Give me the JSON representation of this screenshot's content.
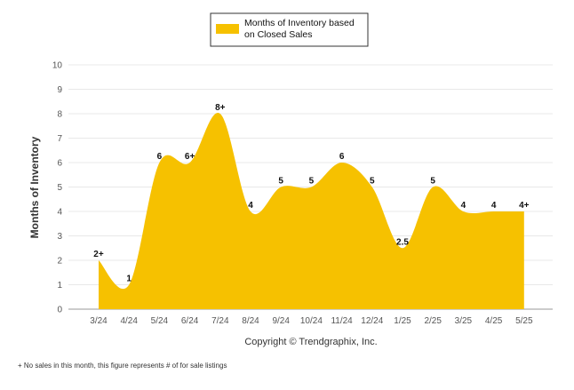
{
  "chart_data": {
    "type": "area",
    "categories": [
      "3/24",
      "4/24",
      "5/24",
      "6/24",
      "7/24",
      "8/24",
      "9/24",
      "10/24",
      "11/24",
      "12/24",
      "1/25",
      "2/25",
      "3/25",
      "4/25",
      "5/25"
    ],
    "series": [
      {
        "name": "Months of Inventory based on Closed Sales",
        "values": [
          2,
          1,
          6,
          6,
          8,
          4,
          5,
          5,
          6,
          5,
          2.5,
          5,
          4,
          4,
          4
        ],
        "data_labels": [
          "2+",
          "1",
          "6",
          "6+",
          "8+",
          "4",
          "5",
          "5",
          "6",
          "5",
          "2.5",
          "5",
          "4",
          "4",
          "4+"
        ]
      }
    ],
    "ylabel": "Months of Inventory",
    "xlabel": "Copyright © Trendgraphix, Inc.",
    "ylim": [
      0,
      10
    ],
    "yticks": [
      0,
      1,
      2,
      3,
      4,
      5,
      6,
      7,
      8,
      9,
      10
    ],
    "grid": true,
    "legend": "top-center",
    "colors": {
      "area": "#f6c100",
      "grid": "#e8e8e8",
      "axis": "#999999",
      "tick_text": "#555555"
    }
  },
  "footnote": "+  No sales in this month, this figure represents # of for sale listings"
}
